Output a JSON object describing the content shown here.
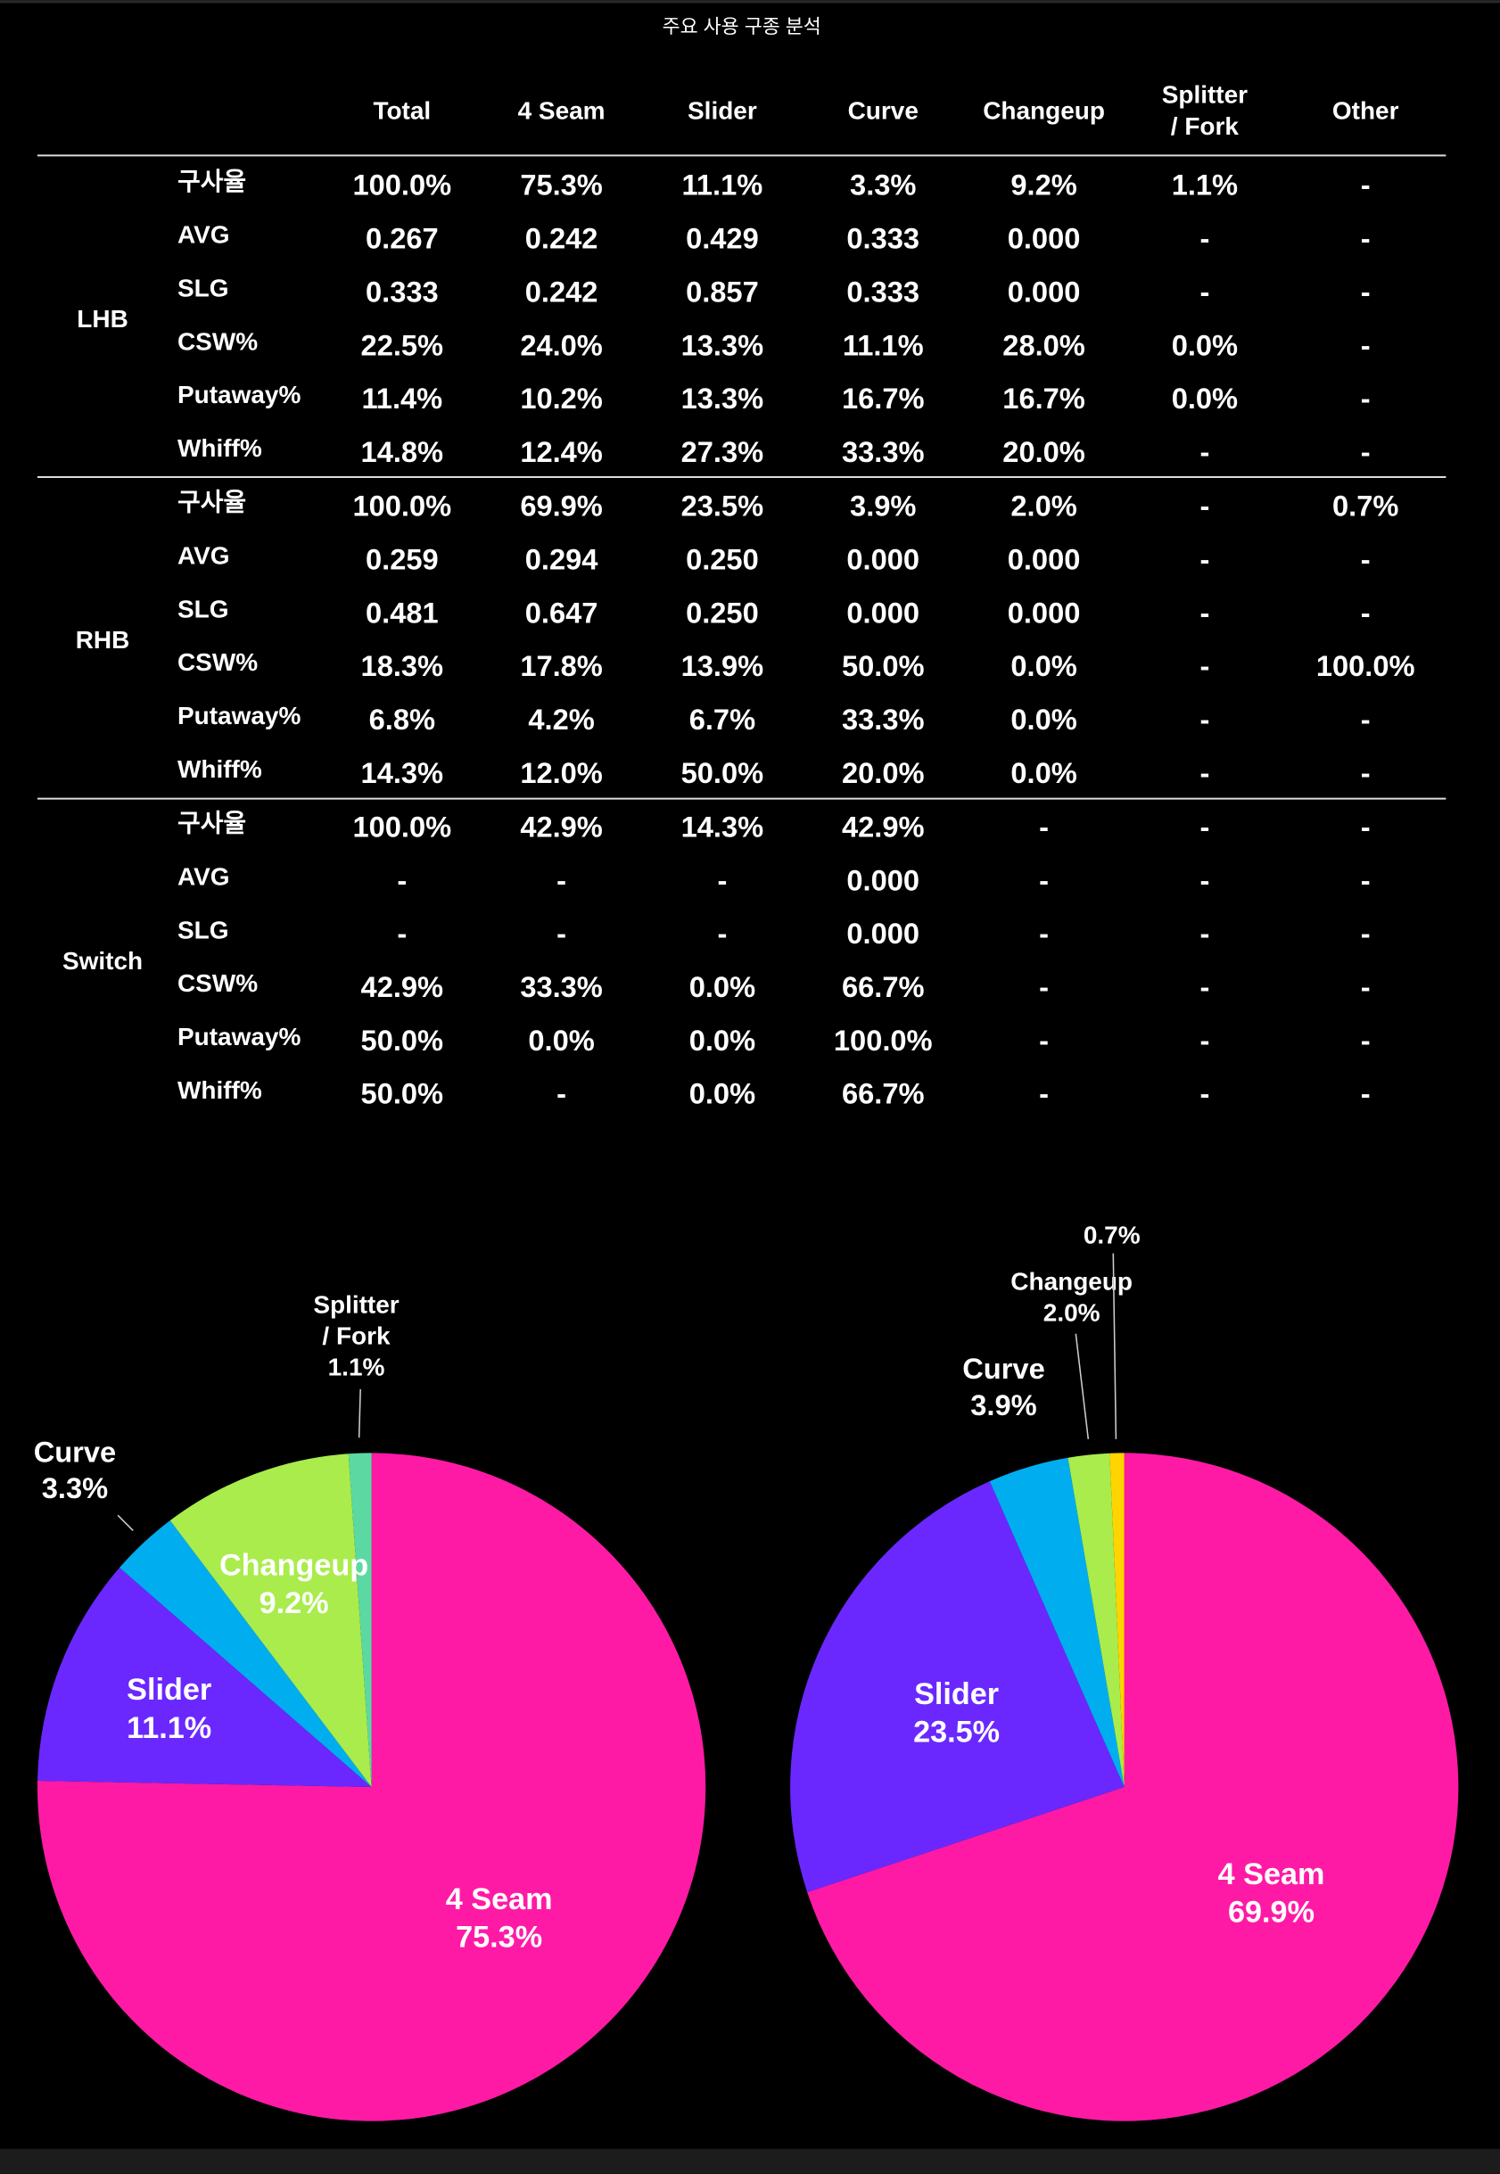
{
  "title": "주요 사용 구종 분석",
  "table": {
    "columns": [
      "Total",
      "4 Seam",
      "Slider",
      "Curve",
      "Changeup",
      [
        "Splitter",
        "/ Fork"
      ],
      "Other"
    ],
    "groups": [
      {
        "name": "LHB",
        "rows": [
          {
            "label": "구사율",
            "cells": [
              "100.0%",
              "75.3%",
              "11.1%",
              "3.3%",
              "9.2%",
              "1.1%",
              "-"
            ]
          },
          {
            "label": "AVG",
            "cells": [
              "0.267",
              "0.242",
              "0.429",
              "0.333",
              "0.000",
              "-",
              "-"
            ]
          },
          {
            "label": "SLG",
            "cells": [
              "0.333",
              "0.242",
              "0.857",
              "0.333",
              "0.000",
              "-",
              "-"
            ]
          },
          {
            "label": "CSW%",
            "cells": [
              "22.5%",
              "24.0%",
              "13.3%",
              "11.1%",
              "28.0%",
              "0.0%",
              "-"
            ]
          },
          {
            "label": "Putaway%",
            "cells": [
              "11.4%",
              "10.2%",
              "13.3%",
              "16.7%",
              "16.7%",
              "0.0%",
              "-"
            ]
          },
          {
            "label": "Whiff%",
            "cells": [
              "14.8%",
              "12.4%",
              "27.3%",
              "33.3%",
              "20.0%",
              "-",
              "-"
            ]
          }
        ]
      },
      {
        "name": "RHB",
        "rows": [
          {
            "label": "구사율",
            "cells": [
              "100.0%",
              "69.9%",
              "23.5%",
              "3.9%",
              "2.0%",
              "-",
              "0.7%"
            ]
          },
          {
            "label": "AVG",
            "cells": [
              "0.259",
              "0.294",
              "0.250",
              "0.000",
              "0.000",
              "-",
              "-"
            ]
          },
          {
            "label": "SLG",
            "cells": [
              "0.481",
              "0.647",
              "0.250",
              "0.000",
              "0.000",
              "-",
              "-"
            ]
          },
          {
            "label": "CSW%",
            "cells": [
              "18.3%",
              "17.8%",
              "13.9%",
              "50.0%",
              "0.0%",
              "-",
              "100.0%"
            ]
          },
          {
            "label": "Putaway%",
            "cells": [
              "6.8%",
              "4.2%",
              "6.7%",
              "33.3%",
              "0.0%",
              "-",
              "-"
            ]
          },
          {
            "label": "Whiff%",
            "cells": [
              "14.3%",
              "12.0%",
              "50.0%",
              "20.0%",
              "0.0%",
              "-",
              "-"
            ]
          }
        ]
      },
      {
        "name": "Switch",
        "rows": [
          {
            "label": "구사율",
            "cells": [
              "100.0%",
              "42.9%",
              "14.3%",
              "42.9%",
              "-",
              "-",
              "-"
            ]
          },
          {
            "label": "AVG",
            "cells": [
              "-",
              "-",
              "-",
              "0.000",
              "-",
              "-",
              "-"
            ]
          },
          {
            "label": "SLG",
            "cells": [
              "-",
              "-",
              "-",
              "0.000",
              "-",
              "-",
              "-"
            ]
          },
          {
            "label": "CSW%",
            "cells": [
              "42.9%",
              "33.3%",
              "0.0%",
              "66.7%",
              "-",
              "-",
              "-"
            ]
          },
          {
            "label": "Putaway%",
            "cells": [
              "50.0%",
              "0.0%",
              "0.0%",
              "100.0%",
              "-",
              "-",
              "-"
            ]
          },
          {
            "label": "Whiff%",
            "cells": [
              "50.0%",
              "-",
              "0.0%",
              "66.7%",
              "-",
              "-",
              "-"
            ]
          }
        ]
      }
    ]
  },
  "chart_data": [
    {
      "type": "pie",
      "categories": [
        "4 Seam",
        "Slider",
        "Curve",
        "Changeup",
        [
          "Splitter",
          "/ Fork"
        ]
      ],
      "values": [
        75.3,
        11.1,
        3.3,
        9.2,
        1.1
      ],
      "value_labels": [
        "75.3%",
        "11.1%",
        "3.3%",
        "9.2%",
        "1.1%"
      ],
      "colors": [
        "#ff1aa6",
        "#6a28ff",
        "#00aeef",
        "#a9ec4c",
        "#5cd9a2"
      ]
    },
    {
      "type": "pie",
      "categories": [
        "4 Seam",
        "Slider",
        "Curve",
        "Changeup",
        null
      ],
      "values": [
        69.9,
        23.5,
        3.9,
        2.0,
        0.7
      ],
      "value_labels": [
        "69.9%",
        "23.5%",
        "3.9%",
        "2.0%",
        "0.7%"
      ],
      "colors": [
        "#ff1aa6",
        "#6a28ff",
        "#00aeef",
        "#a9ec4c",
        "#ffd400"
      ]
    }
  ]
}
